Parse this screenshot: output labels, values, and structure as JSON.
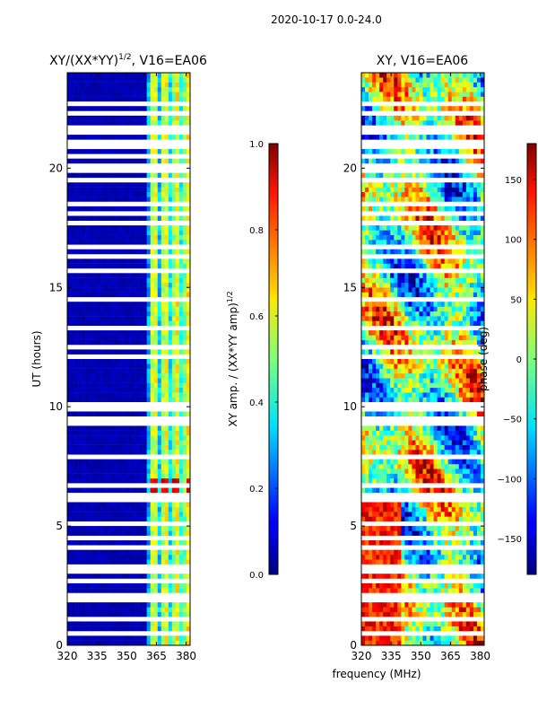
{
  "suptitle": "2020-10-17 0.0-24.0",
  "xlabel": "frequency (MHz)",
  "chart_data": [
    {
      "type": "heatmap",
      "title": "XY/(XX*YY)",
      "title_exponent": "1/2",
      "title_suffix": ", V16=EA06",
      "ylabel": "UT (hours)",
      "xlabel": "frequency (MHz)",
      "xlim": [
        320,
        382
      ],
      "ylim": [
        0,
        24
      ],
      "xticks": [
        320,
        335,
        350,
        365,
        380
      ],
      "yticks": [
        0,
        5,
        10,
        15,
        20
      ],
      "colorbar": {
        "label": "XY amp. / (XX*YY amp)",
        "label_exponent": "1/2",
        "range": [
          0.0,
          1.0
        ],
        "ticks": [
          "0.0",
          "0.2",
          "0.4",
          "0.6",
          "0.8",
          "1.0"
        ],
        "tick_values": [
          0.0,
          0.2,
          0.4,
          0.6,
          0.8,
          1.0
        ]
      }
    },
    {
      "type": "heatmap",
      "title": "XY, V16=EA06",
      "ylabel": "",
      "xlabel": "frequency (MHz)",
      "xlim": [
        320,
        382
      ],
      "ylim": [
        0,
        24
      ],
      "xticks": [
        320,
        335,
        350,
        365,
        380
      ],
      "yticks": [
        0,
        5,
        10,
        15,
        20
      ],
      "colorbar": {
        "label": "phase (deg)",
        "range": [
          -180,
          180
        ],
        "ticks": [
          "−150",
          "−100",
          "−50",
          "0",
          "50",
          "100",
          "150"
        ],
        "tick_values": [
          -150,
          -100,
          -50,
          0,
          50,
          100,
          150
        ]
      }
    }
  ]
}
